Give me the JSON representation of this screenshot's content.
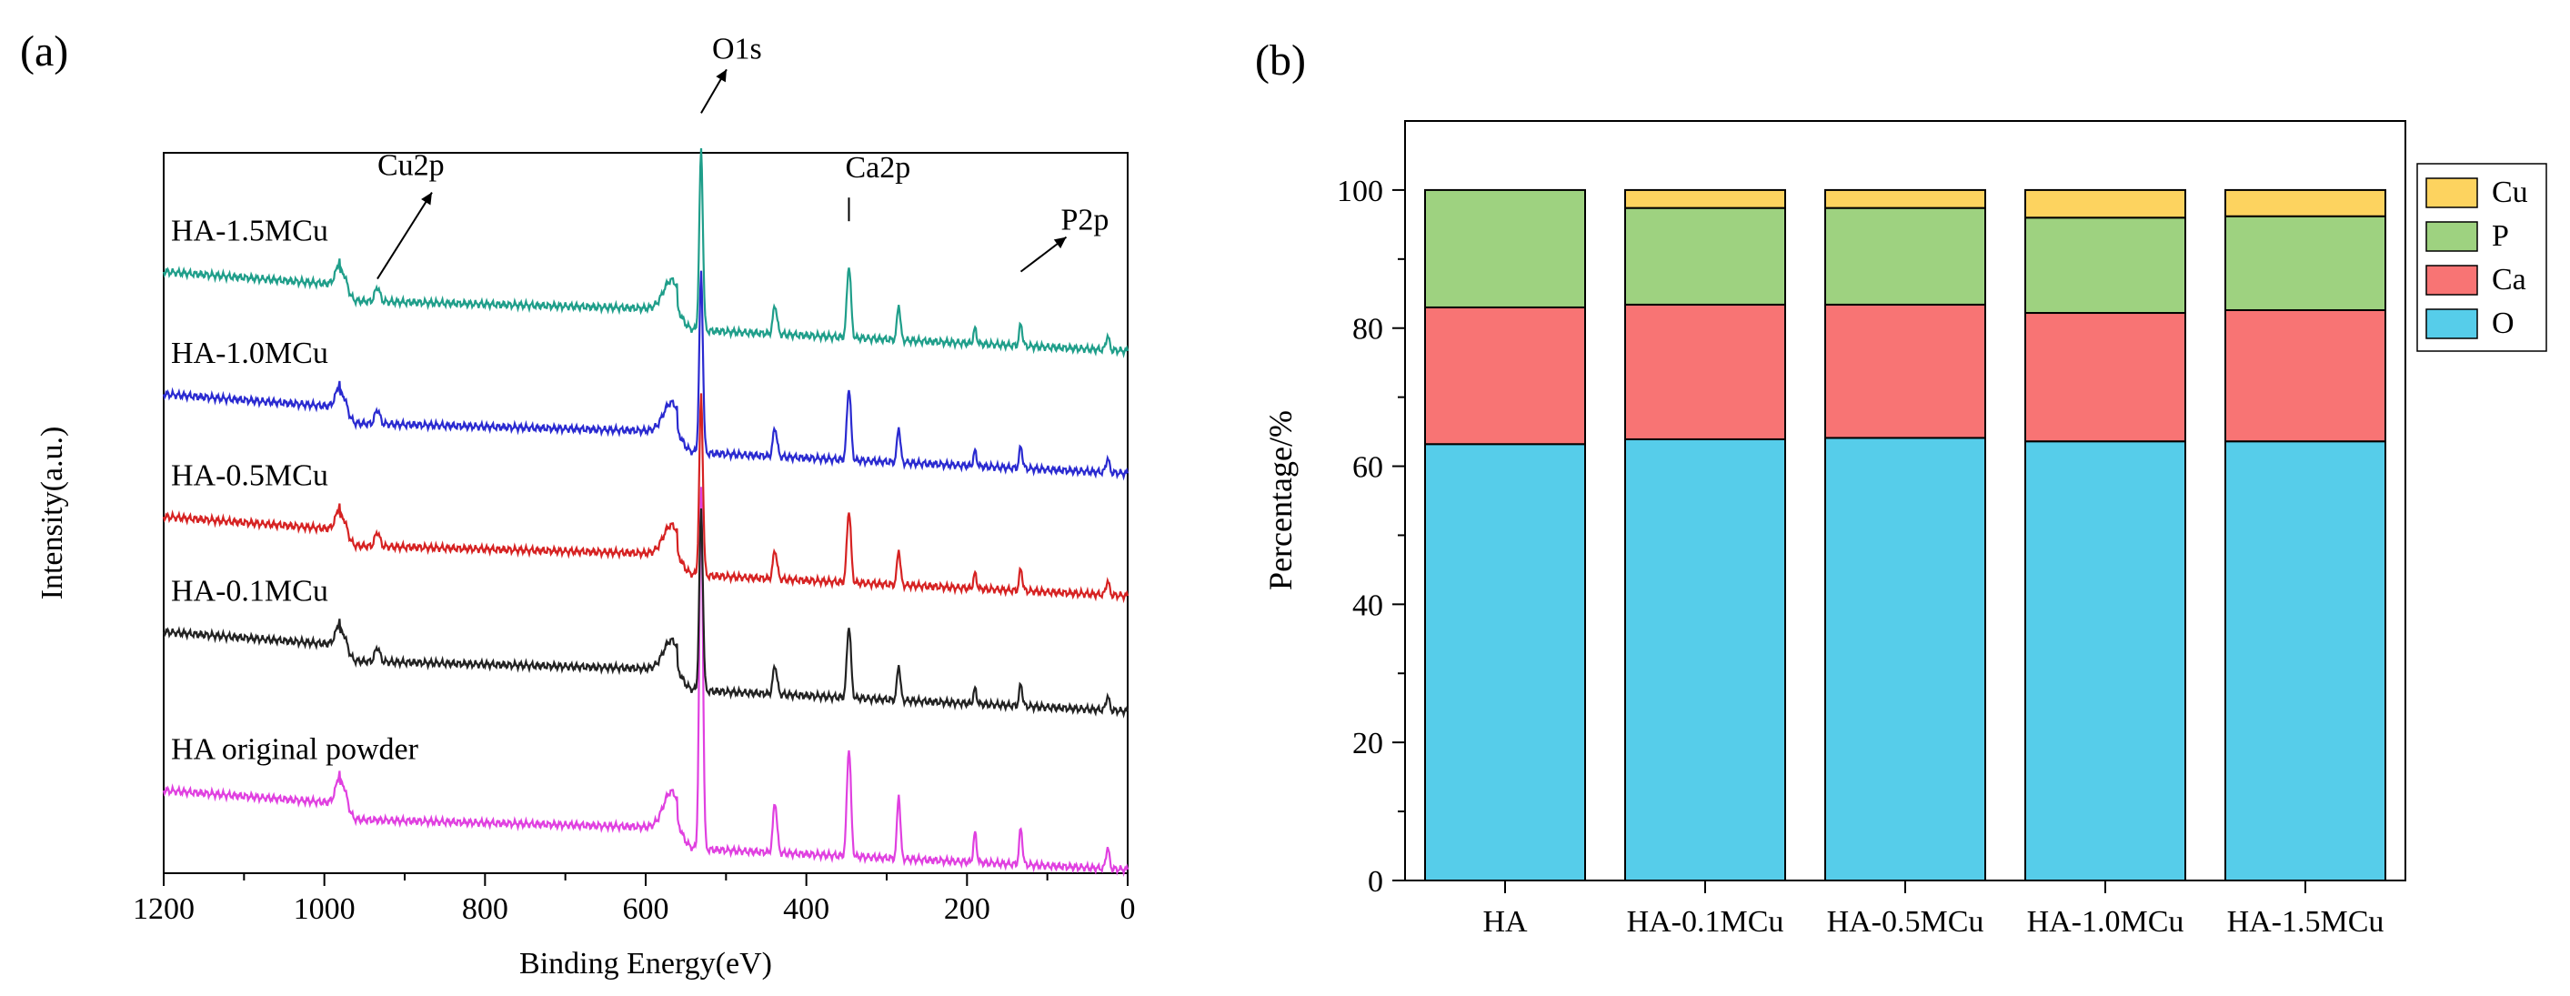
{
  "chart_data": [
    {
      "type": "line",
      "panel_label": "(a)",
      "title": "",
      "xlabel": "Binding Energy(eV)",
      "ylabel": "Intensity(a.u.)",
      "xlim": [
        1200,
        0
      ],
      "x_reversed": true,
      "x_ticks": [
        1200,
        1000,
        800,
        600,
        400,
        200,
        0
      ],
      "y_ticks_shown": false,
      "peak_positions_eV": [
        978,
        934,
        568,
        531,
        439,
        347,
        285,
        190,
        133,
        25
      ],
      "series": [
        {
          "name": "HA original powder",
          "color": "#e040e0",
          "baseline": 0.08,
          "peaks": [
            0.05,
            0.0,
            0.05,
            0.5,
            0.07,
            0.15,
            0.09,
            0.04,
            0.05,
            0.03
          ]
        },
        {
          "name": "HA-0.1MCu",
          "color": "#222222",
          "baseline": 0.3,
          "peaks": [
            0.04,
            0.02,
            0.04,
            0.25,
            0.04,
            0.1,
            0.05,
            0.02,
            0.03,
            0.02
          ]
        },
        {
          "name": "HA-0.5MCu",
          "color": "#d62222",
          "baseline": 0.46,
          "peaks": [
            0.04,
            0.02,
            0.04,
            0.25,
            0.04,
            0.1,
            0.05,
            0.02,
            0.03,
            0.02
          ]
        },
        {
          "name": "HA-1.0MCu",
          "color": "#2a2ad0",
          "baseline": 0.63,
          "peaks": [
            0.04,
            0.02,
            0.04,
            0.25,
            0.04,
            0.1,
            0.05,
            0.02,
            0.03,
            0.02
          ]
        },
        {
          "name": "HA-1.5MCu",
          "color": "#1f9e8a",
          "baseline": 0.8,
          "peaks": [
            0.04,
            0.02,
            0.04,
            0.25,
            0.04,
            0.1,
            0.05,
            0.02,
            0.03,
            0.02
          ]
        }
      ],
      "annotations": [
        {
          "text": "Cu2p",
          "at_eV": 934
        },
        {
          "text": "O1s",
          "at_eV": 531
        },
        {
          "text": "Ca2p",
          "at_eV": 347
        },
        {
          "text": "P2p",
          "at_eV": 133
        }
      ]
    },
    {
      "type": "bar",
      "stacked": true,
      "panel_label": "(b)",
      "title": "",
      "xlabel": "",
      "ylabel": "Percentage/%",
      "ylim": [
        0,
        110
      ],
      "y_ticks": [
        0,
        20,
        40,
        60,
        80,
        100
      ],
      "categories": [
        "HA",
        "HA-0.1MCu",
        "HA-0.5MCu",
        "HA-1.0MCu",
        "HA-1.5MCu"
      ],
      "legend_position": "right, outside plot, top",
      "series": [
        {
          "name": "O",
          "color": "#56cdea",
          "values": [
            63.2,
            63.9,
            64.1,
            63.6,
            63.6
          ]
        },
        {
          "name": "Ca",
          "color": "#f87474",
          "values": [
            19.8,
            19.5,
            19.3,
            18.6,
            19.0
          ]
        },
        {
          "name": "P",
          "color": "#9ed280",
          "values": [
            17.0,
            14.0,
            14.0,
            13.8,
            13.6
          ]
        },
        {
          "name": "Cu",
          "color": "#fdd35f",
          "values": [
            0.0,
            2.6,
            2.6,
            4.0,
            3.8
          ]
        }
      ]
    }
  ]
}
